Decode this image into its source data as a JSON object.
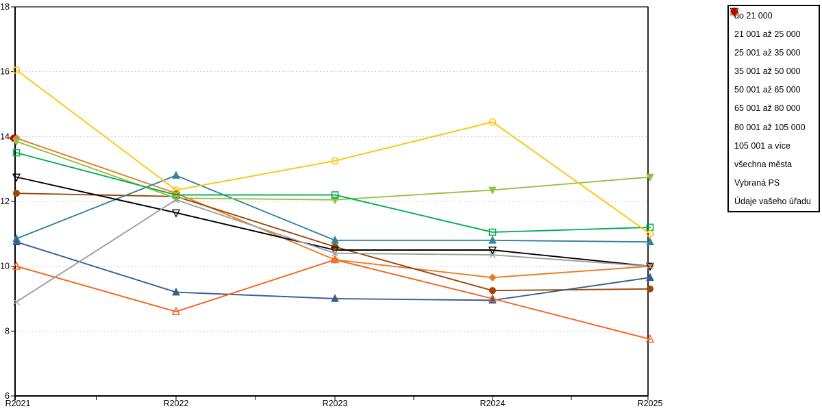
{
  "chart_data": {
    "type": "line",
    "title": "",
    "xlabel": "",
    "ylabel": "",
    "x": [
      "R2021",
      "R2022",
      "R2023",
      "R2024",
      "R2025"
    ],
    "ylim": [
      6,
      18
    ],
    "yticks": [
      6,
      8,
      10,
      12,
      14,
      16,
      18
    ],
    "grid": "horizontal-dashed",
    "legend_position": "right-outside-boxed",
    "series": [
      {
        "name": "do 21 000",
        "marker": "diamond-filled",
        "color": "#E67E22",
        "values": [
          13.95,
          12.25,
          10.2,
          9.65,
          10.0
        ]
      },
      {
        "name": "21 001 až 25 000",
        "marker": "circle-filled",
        "color": "#9C4708",
        "values": [
          12.25,
          12.15,
          10.6,
          9.25,
          9.3
        ]
      },
      {
        "name": "25 001 až 35 000",
        "marker": "triangle-up-filled",
        "color": "#31849B",
        "values": [
          10.85,
          12.8,
          10.8,
          10.8,
          10.75
        ]
      },
      {
        "name": "35 001 až 50 000",
        "marker": "triangle-up-filled",
        "color": "#365F91",
        "values": [
          10.75,
          9.2,
          9.0,
          8.95,
          9.65
        ]
      },
      {
        "name": "50 001 až 65 000",
        "marker": "triangle-down-filled",
        "color": "#94C147",
        "values": [
          13.85,
          12.1,
          12.05,
          12.35,
          12.75
        ]
      },
      {
        "name": "65 001 až 80 000",
        "marker": "square-hollow",
        "color": "#00B050",
        "values": [
          13.5,
          12.2,
          12.2,
          11.05,
          11.2
        ]
      },
      {
        "name": "80 001 až 105 000",
        "marker": "circle-hollow",
        "color": "#FFC40C",
        "values": [
          16.05,
          12.35,
          13.25,
          14.45,
          11.0
        ]
      },
      {
        "name": "105 001 a více",
        "marker": "triangle-up-hollow",
        "color": "#F4641D",
        "values": [
          10.0,
          8.6,
          10.2,
          9.0,
          7.75
        ]
      },
      {
        "name": "všechna města",
        "marker": "triangle-down-hollow",
        "color": "#000000",
        "values": [
          12.75,
          11.65,
          10.5,
          10.5,
          10.0
        ]
      },
      {
        "name": "Vybraná PS",
        "marker": "x",
        "color": "#9E9E9E",
        "values": [
          8.9,
          12.05,
          10.4,
          10.35,
          10.0
        ]
      },
      {
        "name": "Údaje vašeho úřadu",
        "marker": "diamond-filled",
        "color": "#C00000",
        "values": [
          13.95,
          null,
          null,
          null,
          null
        ]
      }
    ]
  }
}
